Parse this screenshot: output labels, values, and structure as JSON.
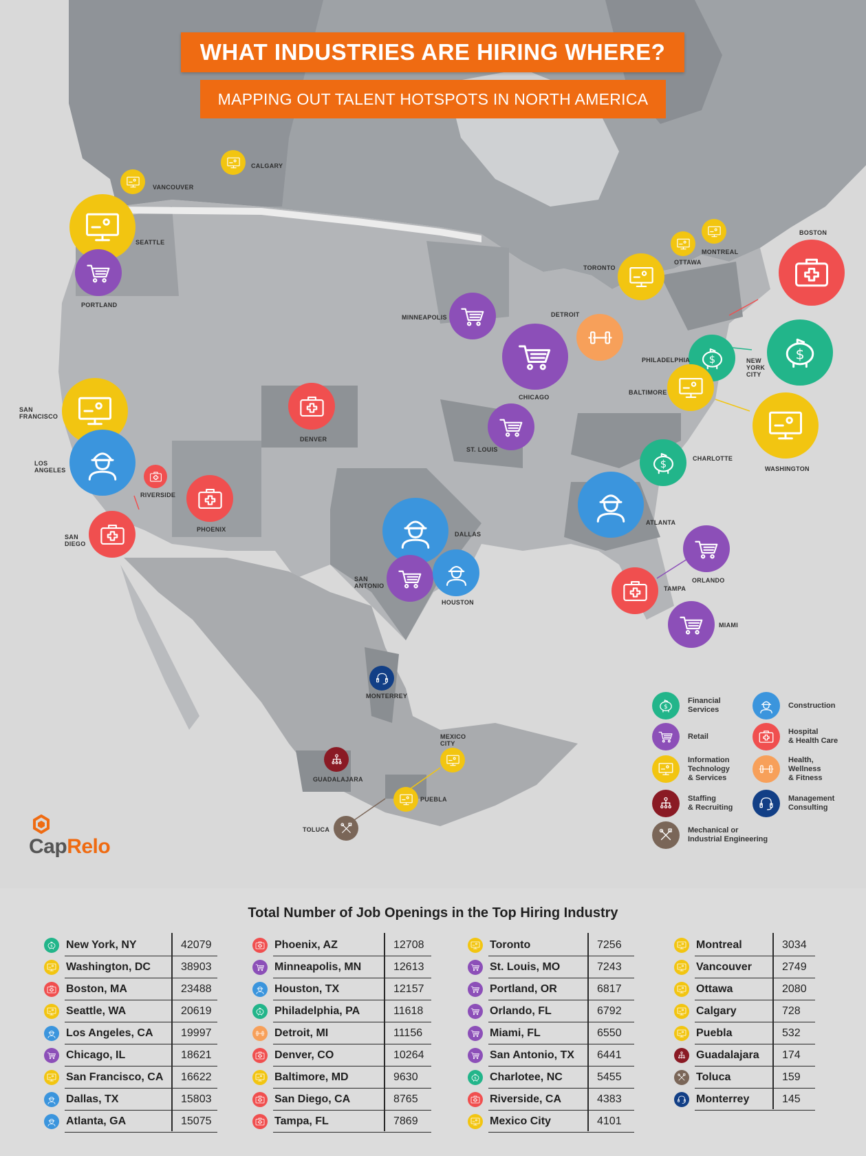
{
  "title": "WHAT INDUSTRIES ARE HIRING WHERE?",
  "subtitle": "MAPPING OUT TALENT HOTSPOTS IN NORTH AMERICA",
  "brand": {
    "part1": "Cap",
    "part2": "Relo"
  },
  "industries": {
    "financial": {
      "label": "Financial\nServices",
      "color": "#22b58a",
      "icon": "piggy-bank-icon"
    },
    "retail": {
      "label": "Retail",
      "color": "#8c4fb8",
      "icon": "cart-icon"
    },
    "it": {
      "label": "Information\nTechnology\n& Services",
      "color": "#f2c511",
      "icon": "computer-icon"
    },
    "staffing": {
      "label": "Staffing\n& Recruiting",
      "color": "#8a1a24",
      "icon": "org-chart-icon"
    },
    "mechanical": {
      "label": "Mechanical or\nIndustrial Engineering",
      "color": "#7a6658",
      "icon": "tools-icon"
    },
    "construction": {
      "label": "Construction",
      "color": "#3b95dd",
      "icon": "worker-icon"
    },
    "hospital": {
      "label": "Hospital\n& Health Care",
      "color": "#f04f4f",
      "icon": "medkit-icon"
    },
    "wellness": {
      "label": "Health,\nWellness\n& Fitness",
      "color": "#f7a05a",
      "icon": "dumbbell-icon"
    },
    "management": {
      "label": "Management\nConsulting",
      "color": "#123f86",
      "icon": "headset-icon"
    }
  },
  "map_labels": [
    {
      "name": "CALGARY",
      "industry": "it"
    },
    {
      "name": "VANCOUVER",
      "industry": "it"
    },
    {
      "name": "SEATTLE",
      "industry": "it"
    },
    {
      "name": "PORTLAND",
      "industry": "retail"
    },
    {
      "name": "SAN\nFRANCISCO",
      "industry": "it"
    },
    {
      "name": "LOS\nANGELES",
      "industry": "construction"
    },
    {
      "name": "RIVERSIDE",
      "industry": "hospital"
    },
    {
      "name": "SAN\nDIEGO",
      "industry": "hospital"
    },
    {
      "name": "PHOENIX",
      "industry": "hospital"
    },
    {
      "name": "DENVER",
      "industry": "hospital"
    },
    {
      "name": "MINNEAPOLIS",
      "industry": "retail"
    },
    {
      "name": "CHICAGO",
      "industry": "retail"
    },
    {
      "name": "ST. LOUIS",
      "industry": "retail"
    },
    {
      "name": "DETROIT",
      "industry": "wellness"
    },
    {
      "name": "DALLAS",
      "industry": "construction"
    },
    {
      "name": "SAN\nANTONIO",
      "industry": "retail"
    },
    {
      "name": "HOUSTON",
      "industry": "construction"
    },
    {
      "name": "TORONTO",
      "industry": "it"
    },
    {
      "name": "OTTAWA",
      "industry": "it"
    },
    {
      "name": "MONTREAL",
      "industry": "it"
    },
    {
      "name": "BOSTON",
      "industry": "hospital"
    },
    {
      "name": "NEW\nYORK\nCITY",
      "industry": "financial"
    },
    {
      "name": "PHILADELPHIA",
      "industry": "financial"
    },
    {
      "name": "BALTIMORE",
      "industry": "it"
    },
    {
      "name": "WASHINGTON",
      "industry": "it"
    },
    {
      "name": "CHARLOTTE",
      "industry": "financial"
    },
    {
      "name": "ATLANTA",
      "industry": "construction"
    },
    {
      "name": "ORLANDO",
      "industry": "retail"
    },
    {
      "name": "TAMPA",
      "industry": "hospital"
    },
    {
      "name": "MIAMI",
      "industry": "retail"
    },
    {
      "name": "MONTERREY",
      "industry": "management"
    },
    {
      "name": "MEXICO\nCITY",
      "industry": "it"
    },
    {
      "name": "GUADALAJARA",
      "industry": "staffing"
    },
    {
      "name": "PUEBLA",
      "industry": "it"
    },
    {
      "name": "TOLUCA",
      "industry": "mechanical"
    }
  ],
  "table": {
    "title": "Total Number of Job Openings in the Top Hiring Industry",
    "columns": [
      [
        {
          "city": "New York, NY",
          "value": "42079",
          "industry": "financial"
        },
        {
          "city": "Washington, DC",
          "value": "38903",
          "industry": "it"
        },
        {
          "city": "Boston, MA",
          "value": "23488",
          "industry": "hospital"
        },
        {
          "city": "Seattle, WA",
          "value": "20619",
          "industry": "it"
        },
        {
          "city": "Los Angeles, CA",
          "value": "19997",
          "industry": "construction"
        },
        {
          "city": "Chicago, IL",
          "value": "18621",
          "industry": "retail"
        },
        {
          "city": "San Francisco, CA",
          "value": "16622",
          "industry": "it"
        },
        {
          "city": "Dallas, TX",
          "value": "15803",
          "industry": "construction"
        },
        {
          "city": "Atlanta, GA",
          "value": "15075",
          "industry": "construction"
        }
      ],
      [
        {
          "city": "Phoenix, AZ",
          "value": "12708",
          "industry": "hospital"
        },
        {
          "city": "Minneapolis, MN",
          "value": "12613",
          "industry": "retail"
        },
        {
          "city": "Houston, TX",
          "value": "12157",
          "industry": "construction"
        },
        {
          "city": "Philadelphia, PA",
          "value": "11618",
          "industry": "financial"
        },
        {
          "city": "Detroit, MI",
          "value": "11156",
          "industry": "wellness"
        },
        {
          "city": "Denver, CO",
          "value": "10264",
          "industry": "hospital"
        },
        {
          "city": "Baltimore, MD",
          "value": "9630",
          "industry": "it"
        },
        {
          "city": "San Diego, CA",
          "value": "8765",
          "industry": "hospital"
        },
        {
          "city": "Tampa, FL",
          "value": "7869",
          "industry": "hospital"
        }
      ],
      [
        {
          "city": "Toronto",
          "value": "7256",
          "industry": "it"
        },
        {
          "city": "St. Louis, MO",
          "value": "7243",
          "industry": "retail"
        },
        {
          "city": "Portland, OR",
          "value": "6817",
          "industry": "retail"
        },
        {
          "city": "Orlando, FL",
          "value": "6792",
          "industry": "retail"
        },
        {
          "city": "Miami, FL",
          "value": "6550",
          "industry": "retail"
        },
        {
          "city": "San Antonio, TX",
          "value": "6441",
          "industry": "retail"
        },
        {
          "city": "Charlotee, NC",
          "value": "5455",
          "industry": "financial"
        },
        {
          "city": "Riverside, CA",
          "value": "4383",
          "industry": "hospital"
        },
        {
          "city": "Mexico City",
          "value": "4101",
          "industry": "it"
        }
      ],
      [
        {
          "city": "Montreal",
          "value": "3034",
          "industry": "it"
        },
        {
          "city": "Vancouver",
          "value": "2749",
          "industry": "it"
        },
        {
          "city": "Ottawa",
          "value": "2080",
          "industry": "it"
        },
        {
          "city": "Calgary",
          "value": "728",
          "industry": "it"
        },
        {
          "city": "Puebla",
          "value": "532",
          "industry": "it"
        },
        {
          "city": "Guadalajara",
          "value": "174",
          "industry": "staffing"
        },
        {
          "city": "Toluca",
          "value": "159",
          "industry": "mechanical"
        },
        {
          "city": "Monterrey",
          "value": "145",
          "industry": "management"
        }
      ]
    ]
  }
}
